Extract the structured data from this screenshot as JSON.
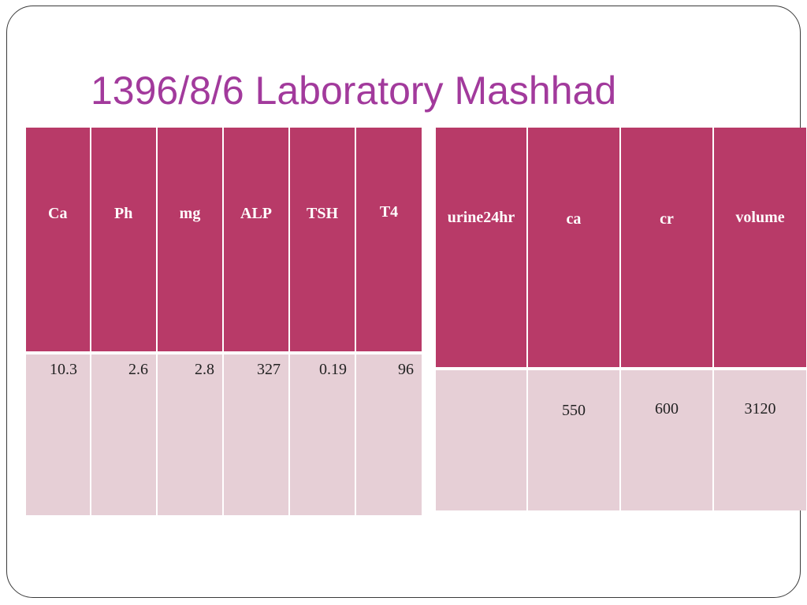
{
  "title": "1396/8/6 Laboratory Mashhad",
  "colors": {
    "title": "#a23a9c",
    "header_fill": "#b83a68",
    "cell_fill": "#e6cfd6"
  },
  "blood_table": {
    "headers": [
      "Ca",
      "Ph",
      "mg",
      "ALP",
      "TSH",
      "T4"
    ],
    "values": [
      "10.3",
      "2.6",
      "2.8",
      "327",
      "0.19",
      "96"
    ]
  },
  "urine_table": {
    "headers": [
      "urine24hr",
      "ca",
      "cr",
      "volume"
    ],
    "values": [
      "",
      "550",
      "600",
      "3120"
    ]
  }
}
